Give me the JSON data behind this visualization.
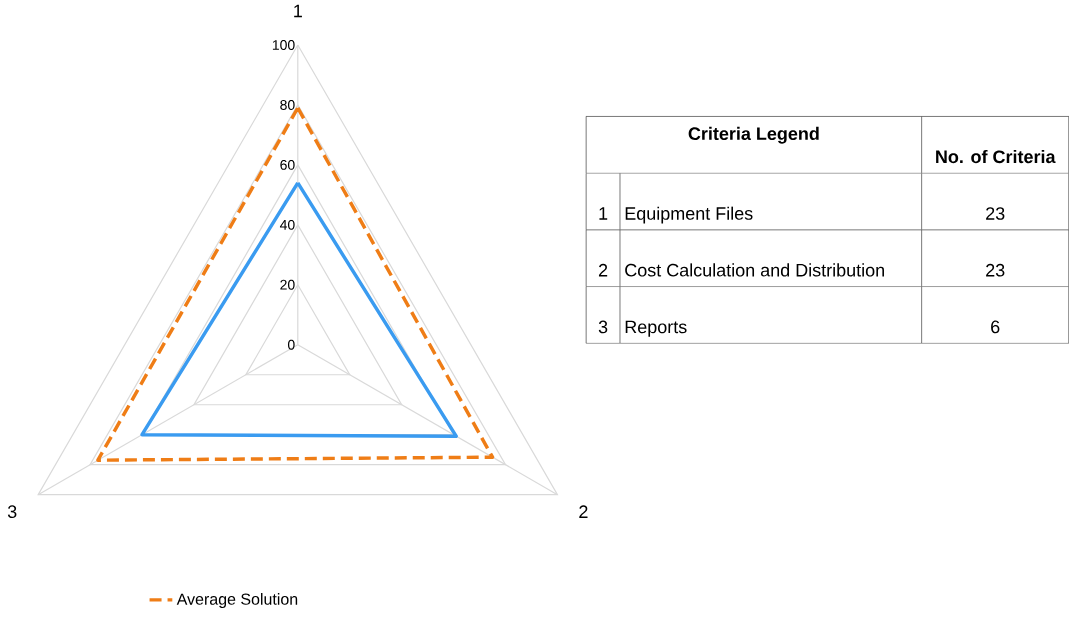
{
  "chart_data": [
    {
      "type": "radar",
      "categories": [
        "1",
        "2",
        "3"
      ],
      "ylim": [
        0,
        100
      ],
      "yticks": [
        0,
        20,
        40,
        60,
        80,
        100
      ],
      "grid": true,
      "legend": "bottom",
      "series": [
        {
          "name": "Average Solution",
          "color": "#ef7d16",
          "line_style": "dashed",
          "values": [
            79,
            75,
            77
          ]
        },
        {
          "color": "#3a9bf0",
          "line_style": "solid",
          "values": [
            54,
            61,
            60
          ]
        }
      ]
    },
    {
      "type": "other",
      "title": "Criteria Legend",
      "ylabel": "No. of Criteria",
      "categories": [
        "Equipment Files",
        "Cost Calculation and Distribution",
        "Reports"
      ],
      "values": [
        23,
        23,
        6
      ],
      "data_labels": true,
      "annotations": [
        "1",
        "2",
        "3"
      ]
    }
  ]
}
